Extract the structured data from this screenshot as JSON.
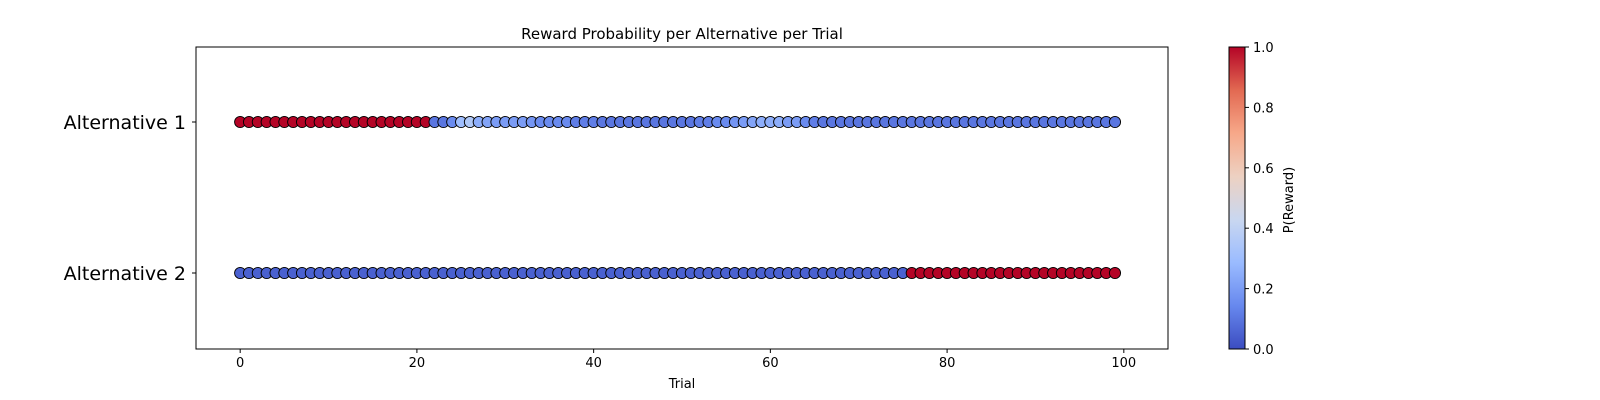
{
  "chart_data": {
    "type": "scatter",
    "title": "Reward Probability per Alternative per Trial",
    "xlabel": "Trial",
    "ylabel": "",
    "xlim": [
      -5,
      105
    ],
    "x_ticks": [
      0,
      20,
      40,
      60,
      80,
      100
    ],
    "categories": [
      "Alternative 1",
      "Alternative 2"
    ],
    "grid": false,
    "colormap": {
      "name": "coolwarm",
      "label": "P(Reward)",
      "range": [
        0.0,
        1.0
      ],
      "ticks": [
        "0.0",
        "0.2",
        "0.4",
        "0.6",
        "0.8",
        "1.0"
      ],
      "stops": [
        "#3b4cc0",
        "#6788ee",
        "#9abbff",
        "#c9d7f0",
        "#edd1c2",
        "#f7a889",
        "#e26952",
        "#b40426"
      ]
    },
    "series": [
      {
        "name": "Alternative 1",
        "trials": "0-99",
        "values": [
          1,
          1,
          1,
          1,
          1,
          1,
          1,
          1,
          1,
          1,
          1,
          1,
          1,
          1,
          1,
          1,
          1,
          1,
          1,
          1,
          1,
          1,
          0.1,
          0.1,
          0.15,
          0.3,
          0.35,
          0.25,
          0.22,
          0.2,
          0.2,
          0.2,
          0.2,
          0.18,
          0.15,
          0.15,
          0.15,
          0.15,
          0.12,
          0.12,
          0.12,
          0.1,
          0.1,
          0.1,
          0.1,
          0.1,
          0.1,
          0.1,
          0.1,
          0.1,
          0.1,
          0.1,
          0.12,
          0.12,
          0.15,
          0.15,
          0.18,
          0.2,
          0.22,
          0.25,
          0.25,
          0.25,
          0.2,
          0.2,
          0.15,
          0.12,
          0.1,
          0.1,
          0.1,
          0.1,
          0.1,
          0.1,
          0.1,
          0.1,
          0.1,
          0.1,
          0.1,
          0.1,
          0.1,
          0.1,
          0.1,
          0.1,
          0.1,
          0.1,
          0.1,
          0.1,
          0.1,
          0.1,
          0.1,
          0.1,
          0.1,
          0.1,
          0.1,
          0.1,
          0.1,
          0.1,
          0.1,
          0.1,
          0.1,
          0.1
        ]
      },
      {
        "name": "Alternative 2",
        "trials": "0-99",
        "values": [
          0.05,
          0.05,
          0.05,
          0.05,
          0.05,
          0.05,
          0.05,
          0.05,
          0.05,
          0.05,
          0.05,
          0.05,
          0.05,
          0.05,
          0.05,
          0.05,
          0.05,
          0.05,
          0.05,
          0.05,
          0.05,
          0.05,
          0.05,
          0.05,
          0.05,
          0.05,
          0.05,
          0.05,
          0.05,
          0.05,
          0.05,
          0.05,
          0.05,
          0.05,
          0.05,
          0.05,
          0.05,
          0.05,
          0.05,
          0.05,
          0.05,
          0.05,
          0.05,
          0.05,
          0.05,
          0.05,
          0.05,
          0.05,
          0.05,
          0.05,
          0.05,
          0.05,
          0.05,
          0.05,
          0.05,
          0.05,
          0.05,
          0.05,
          0.05,
          0.05,
          0.05,
          0.05,
          0.05,
          0.05,
          0.05,
          0.05,
          0.05,
          0.05,
          0.05,
          0.05,
          0.05,
          0.05,
          0.05,
          0.05,
          0.05,
          0.05,
          1,
          1,
          1,
          1,
          1,
          1,
          1,
          1,
          1,
          1,
          1,
          1,
          1,
          1,
          1,
          1,
          1,
          1,
          1,
          1,
          1,
          1,
          1,
          1
        ]
      }
    ]
  }
}
